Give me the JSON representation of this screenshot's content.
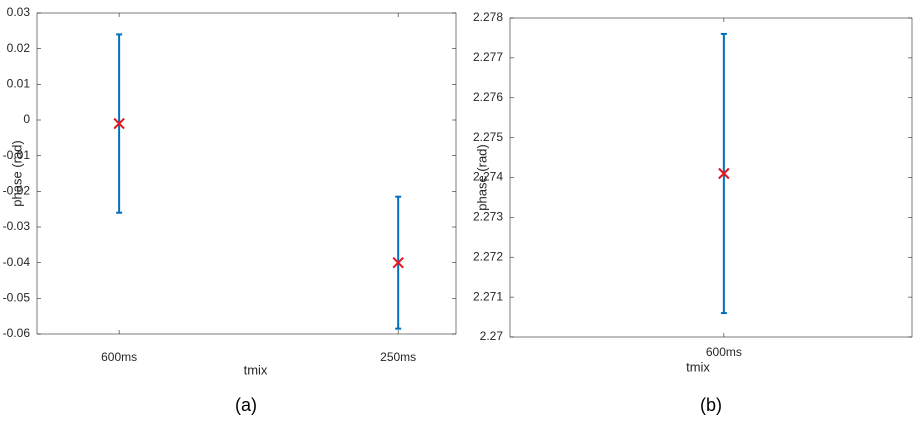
{
  "chart_data": [
    {
      "type": "errorbar",
      "caption": "(a)",
      "xlabel": "tmix",
      "ylabel": "phase (rad)",
      "categories": [
        "600ms",
        "250ms"
      ],
      "values": [
        -0.001,
        -0.04
      ],
      "errors": [
        0.025,
        0.0185
      ],
      "color": "#0072bd",
      "marker_color": "#e8141b",
      "ylim": [
        -0.06,
        0.03
      ],
      "yticks": [
        -0.06,
        -0.05,
        -0.04,
        -0.03,
        -0.02,
        -0.01,
        0,
        0.01,
        0.02,
        0.03
      ]
    },
    {
      "type": "errorbar",
      "caption": "(b)",
      "xlabel": "tmix",
      "ylabel": "phase (rad)",
      "categories": [
        "600ms"
      ],
      "values": [
        2.2741
      ],
      "errors": [
        0.0035
      ],
      "color": "#0072bd",
      "marker_color": "#e8141b",
      "ylim": [
        2.27,
        2.278
      ],
      "yticks": [
        2.27,
        2.271,
        2.272,
        2.273,
        2.274,
        2.275,
        2.276,
        2.277,
        2.278
      ]
    }
  ]
}
